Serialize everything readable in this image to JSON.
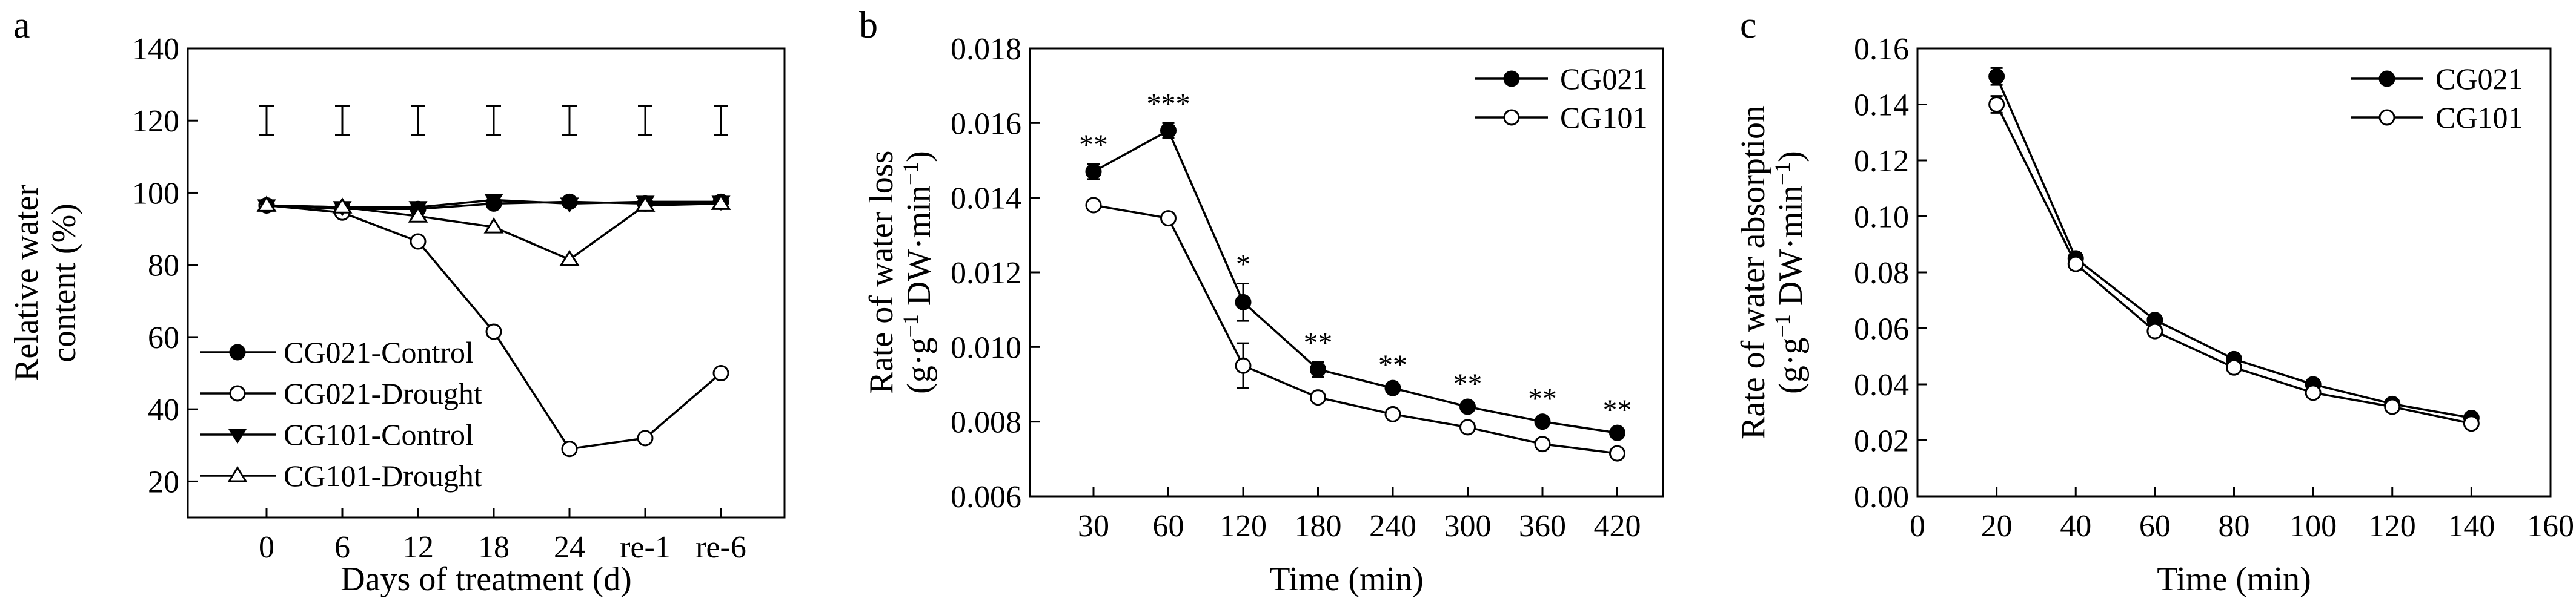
{
  "chart_data": [
    {
      "panel": "a",
      "type": "line",
      "title": "",
      "xlabel": "Days of treatment (d)",
      "ylabel": [
        "Relative water",
        "content (%)"
      ],
      "categories": [
        "0",
        "6",
        "12",
        "18",
        "24",
        "re-1",
        "re-6"
      ],
      "ylim": [
        10,
        140
      ],
      "yticks": [
        20,
        40,
        60,
        80,
        100,
        120,
        140
      ],
      "lsd_error_bar": {
        "y": 120,
        "half_range": 2
      },
      "series": [
        {
          "name": "CG021-Control",
          "marker": "filled-circle",
          "values": [
            96.5,
            95.5,
            95.5,
            97,
            97.5,
            97,
            97.5
          ]
        },
        {
          "name": "CG021-Drought",
          "marker": "open-circle",
          "values": [
            96.5,
            94.5,
            86.5,
            61.5,
            29,
            32,
            50
          ]
        },
        {
          "name": "CG101-Control",
          "marker": "filled-triangle-down",
          "values": [
            96.5,
            96,
            96,
            98,
            97,
            97.5,
            97.5
          ]
        },
        {
          "name": "CG101-Drought",
          "marker": "open-triangle-up",
          "values": [
            96.5,
            96,
            93.5,
            90.5,
            81.5,
            96.5,
            97
          ]
        }
      ],
      "legend": "bottom-left"
    },
    {
      "panel": "b",
      "type": "line",
      "title": "",
      "xlabel": "Time (min)",
      "ylabel": [
        "Rate of water loss",
        "(g·g⁻¹ DW·min⁻¹)"
      ],
      "categories": [
        "30",
        "60",
        "120",
        "180",
        "240",
        "300",
        "360",
        "420"
      ],
      "ylim": [
        0.006,
        0.018
      ],
      "yticks": [
        "0.006",
        "0.008",
        "0.010",
        "0.012",
        "0.014",
        "0.016",
        "0.018"
      ],
      "series": [
        {
          "name": "CG021",
          "marker": "filled-circle",
          "values": [
            0.0147,
            0.0158,
            0.0112,
            0.0094,
            0.0089,
            0.0084,
            0.008,
            0.0077
          ],
          "errors": [
            0.0002,
            0.0002,
            0.0005,
            0.0002,
            0.0001,
            0.0001,
            0.0001,
            0.0001
          ]
        },
        {
          "name": "CG101",
          "marker": "open-circle",
          "values": [
            0.0138,
            0.01345,
            0.0095,
            0.00865,
            0.0082,
            0.00785,
            0.0074,
            0.00715
          ],
          "errors": [
            0.0001,
            0.0001,
            0.0006,
            0.0001,
            0.0001,
            0.0001,
            0.0001,
            0.0001
          ]
        }
      ],
      "significance": [
        "**",
        "***",
        "*",
        "**",
        "**",
        "**",
        "**",
        "**"
      ],
      "legend": "top-right"
    },
    {
      "panel": "c",
      "type": "line",
      "title": "",
      "xlabel": "Time (min)",
      "ylabel": [
        "Rate of water absorption",
        "(g·g⁻¹ DW·min⁻¹)"
      ],
      "xlim": [
        0,
        160
      ],
      "xticks": [
        0,
        20,
        40,
        60,
        80,
        100,
        120,
        140,
        160
      ],
      "ylim": [
        0,
        0.16
      ],
      "yticks": [
        "0.00",
        "0.02",
        "0.04",
        "0.06",
        "0.08",
        "0.10",
        "0.12",
        "0.14",
        "0.16"
      ],
      "series": [
        {
          "name": "CG021",
          "marker": "filled-circle",
          "x": [
            20,
            40,
            60,
            80,
            100,
            120,
            140
          ],
          "values": [
            0.15,
            0.085,
            0.063,
            0.049,
            0.04,
            0.033,
            0.028
          ],
          "errors": [
            0.003,
            0.002,
            0.0015,
            0.001,
            0.001,
            0.001,
            0.001
          ]
        },
        {
          "name": "CG101",
          "marker": "open-circle",
          "x": [
            20,
            40,
            60,
            80,
            100,
            120,
            140
          ],
          "values": [
            0.14,
            0.083,
            0.059,
            0.046,
            0.037,
            0.032,
            0.026
          ],
          "errors": [
            0.003,
            0.002,
            0.0015,
            0.001,
            0.001,
            0.001,
            0.001
          ]
        }
      ],
      "legend": "top-right"
    }
  ]
}
